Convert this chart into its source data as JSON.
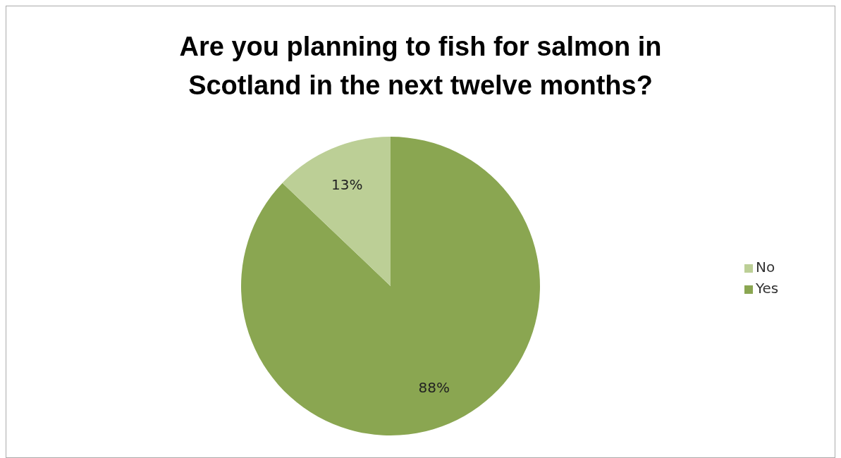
{
  "chart_data": {
    "type": "pie",
    "title": "Are you planning to fish for salmon in Scotland in the next twelve months?",
    "categories": [
      "Yes",
      "No"
    ],
    "values": [
      88,
      13
    ],
    "value_labels": [
      "88%",
      "13%"
    ],
    "colors": [
      "#8aa651",
      "#bccf96"
    ],
    "legend": "right"
  }
}
